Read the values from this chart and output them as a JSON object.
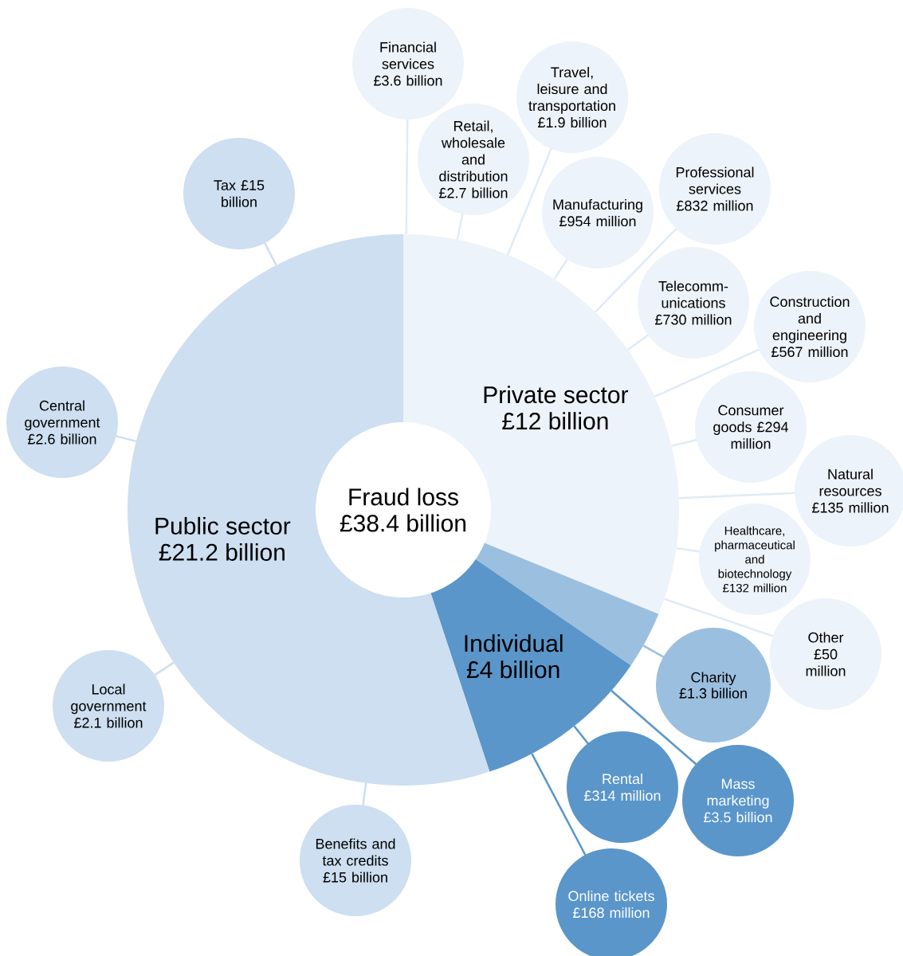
{
  "chart_data": {
    "type": "donut",
    "title": "Fraud loss",
    "subtitle": "£38.4 billion",
    "categories": [
      "Private sector",
      "Charity",
      "Individual",
      "Public sector"
    ],
    "values": [
      12,
      1.3,
      4,
      21.2
    ],
    "value_labels": [
      "£12 billion",
      "£1.3 billion",
      "£4 billion",
      "£21.2 billion"
    ],
    "colors": [
      "#edf3fa",
      "#9bbfdf",
      "#5a96ca",
      "#cddff0"
    ],
    "annotations": [
      "Tax £15 billion",
      "Central government £2.6 billion",
      "Local government £2.1 billion",
      "Benefits and tax credits £15 billion",
      "Financial services £3.6 billion",
      "Retail, wholesale and distribution £2.7 billion",
      "Travel, leisure and transportation £1.9 billion",
      "Manufacturing £954 million",
      "Professional services £832 million",
      "Telecomm-unications £730 million",
      "Construction and engineering £567 million",
      "Consumer goods £294 million",
      "Natural resources £135 million",
      "Healthcare, pharmaceutical and biotechnology £132 million",
      "Other £50 million",
      "Mass marketing £3.5 billion",
      "Rental £314 million",
      "Online tickets £168 million"
    ]
  }
}
